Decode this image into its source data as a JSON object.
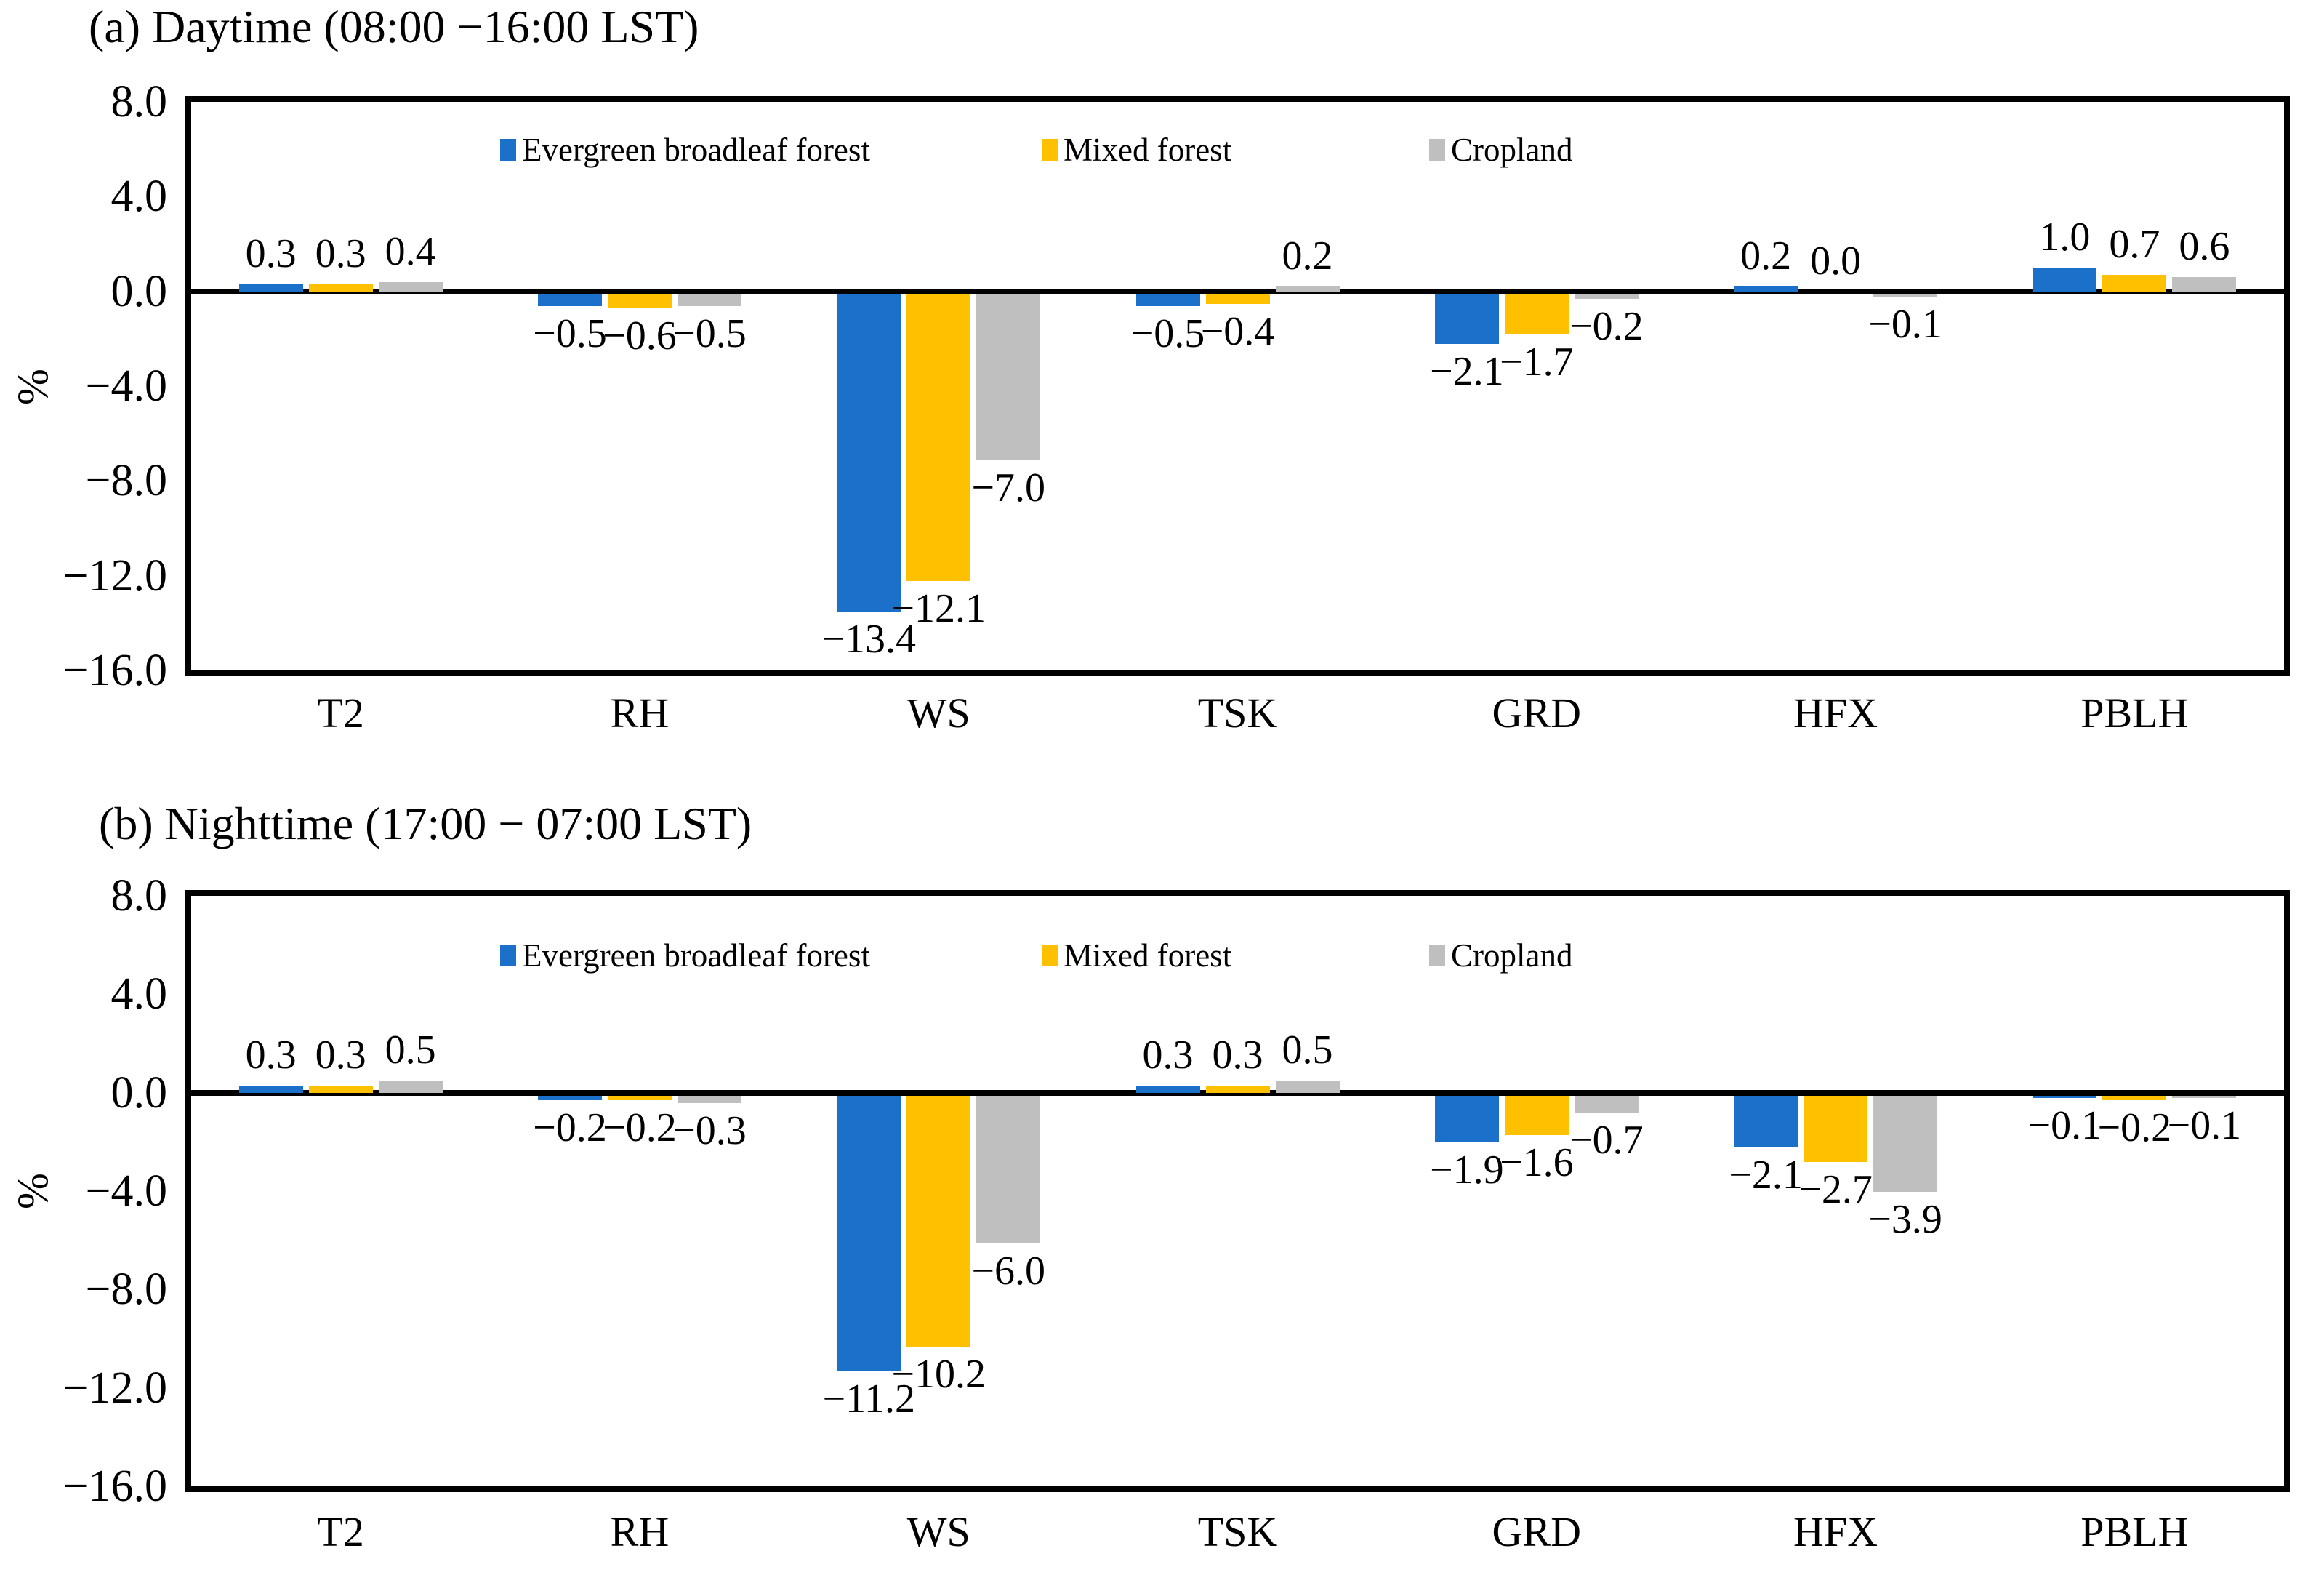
{
  "figure": {
    "y_axis_label": "%"
  },
  "colors": {
    "evergreen_blue": "#1B70C9",
    "mixed_gold": "#FFC000",
    "cropland_gray": "#BFBFBF",
    "axis_black": "#000000",
    "background": "#FFFFFF"
  },
  "legend": [
    "Evergreen broadleaf forest",
    "Mixed forest",
    "Cropland"
  ],
  "chart_data": [
    {
      "type": "bar",
      "title": "(a) Daytime (08:00 −16:00 LST)",
      "ylabel": "%",
      "xlabel": "",
      "categories": [
        "T2",
        "RH",
        "WS",
        "TSK",
        "GRD",
        "HFX",
        "PBLH"
      ],
      "series": [
        {
          "name": "Evergreen broadleaf forest",
          "color": "#1B70C9",
          "values": [
            0.3,
            -0.5,
            -13.4,
            -0.5,
            -2.1,
            0.2,
            1.0
          ]
        },
        {
          "name": "Mixed forest",
          "color": "#FFC000",
          "values": [
            0.3,
            -0.6,
            -12.1,
            -0.4,
            -1.7,
            0.0,
            0.7
          ]
        },
        {
          "name": "Cropland",
          "color": "#BFBFBF",
          "values": [
            0.4,
            -0.5,
            -7.0,
            0.2,
            -0.2,
            -0.1,
            0.6
          ]
        }
      ],
      "ylim": [
        -16.0,
        8.0
      ],
      "yticks": [
        8.0,
        4.0,
        0.0,
        -4.0,
        -8.0,
        -12.0,
        -16.0
      ],
      "grid": false,
      "legend_position": "top-inside",
      "data_labels": true
    },
    {
      "type": "bar",
      "title": "(b) Nighttime (17:00 − 07:00 LST)",
      "ylabel": "%",
      "xlabel": "",
      "categories": [
        "T2",
        "RH",
        "WS",
        "TSK",
        "GRD",
        "HFX",
        "PBLH"
      ],
      "series": [
        {
          "name": "Evergreen broadleaf forest",
          "color": "#1B70C9",
          "values": [
            0.3,
            -0.2,
            -11.2,
            0.3,
            -1.9,
            -2.1,
            -0.1
          ]
        },
        {
          "name": "Mixed forest",
          "color": "#FFC000",
          "values": [
            0.3,
            -0.2,
            -10.2,
            0.3,
            -1.6,
            -2.7,
            -0.2
          ]
        },
        {
          "name": "Cropland",
          "color": "#BFBFBF",
          "values": [
            0.5,
            -0.3,
            -6.0,
            0.5,
            -0.7,
            -3.9,
            -0.1
          ]
        }
      ],
      "ylim": [
        -16.0,
        8.0
      ],
      "yticks": [
        8.0,
        4.0,
        0.0,
        -4.0,
        -8.0,
        -12.0,
        -16.0
      ],
      "grid": false,
      "legend_position": "top-inside",
      "data_labels": true
    }
  ]
}
